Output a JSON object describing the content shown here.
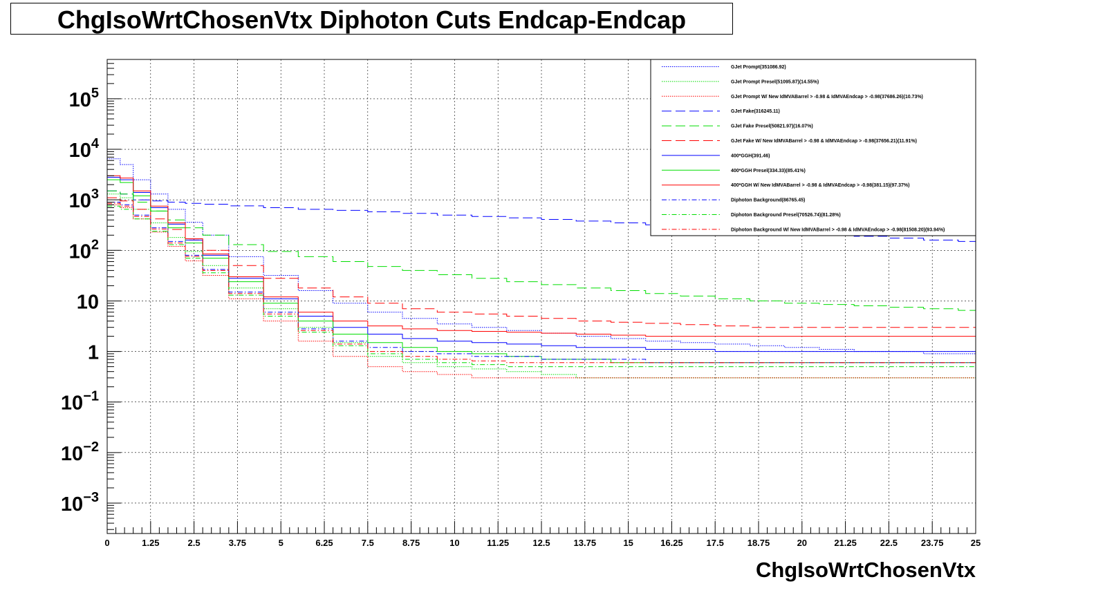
{
  "chart_data": {
    "type": "line",
    "title": "ChgIsoWrtChosenVtx Diphoton Cuts Endcap-Endcap",
    "xlabel": "ChgIsoWrtChosenVtx",
    "ylabel": "",
    "log_y": true,
    "grid": true,
    "legend_position": "top-right",
    "xlim": [
      0,
      25
    ],
    "ylim": [
      0.00025,
      600000
    ],
    "x_ticks": [
      "0",
      "1.25",
      "2.5",
      "3.75",
      "5",
      "6.25",
      "7.5",
      "8.75",
      "10",
      "11.25",
      "12.5",
      "13.75",
      "15",
      "16.25",
      "17.5",
      "18.75",
      "20",
      "21.25",
      "22.5",
      "23.75",
      "25"
    ],
    "y_ticks": [
      {
        "value": 100000,
        "base": "10",
        "exp": "5"
      },
      {
        "value": 10000,
        "base": "10",
        "exp": "4"
      },
      {
        "value": 1000,
        "base": "10",
        "exp": "3"
      },
      {
        "value": 100,
        "base": "10",
        "exp": "2"
      },
      {
        "value": 10,
        "base": "10",
        "exp": ""
      },
      {
        "value": 1,
        "base": "1",
        "exp": ""
      },
      {
        "value": 0.1,
        "base": "10",
        "exp": "−1"
      },
      {
        "value": 0.01,
        "base": "10",
        "exp": "−2"
      },
      {
        "value": 0.001,
        "base": "10",
        "exp": "−3"
      }
    ],
    "x": [
      0.25,
      0.5,
      1,
      1.5,
      2,
      2.5,
      3,
      4,
      5,
      6,
      7,
      8,
      9,
      10,
      11,
      12,
      13,
      14,
      15,
      16,
      17,
      18,
      19,
      20,
      21,
      22,
      23,
      24,
      25
    ],
    "series": [
      {
        "name": "GJet Prompt(351086.92)",
        "color": "#0000ff",
        "dash": "dotted",
        "values": [
          6500,
          5000,
          2500,
          1300,
          650,
          360,
          200,
          75,
          32,
          16,
          9,
          6,
          4.5,
          3.5,
          3,
          2.6,
          2.3,
          2,
          1.8,
          1.6,
          1.5,
          1.4,
          1.3,
          1.2,
          1.1,
          1,
          1,
          0.9,
          0.9
        ]
      },
      {
        "name": "GJet Prompt Presel(51095.87)(14.55%)",
        "color": "#00dd00",
        "dash": "dotted",
        "values": [
          1300,
          1100,
          650,
          350,
          180,
          95,
          50,
          18,
          7,
          3,
          1.5,
          0.8,
          0.6,
          0.5,
          0.45,
          0.4,
          0.35,
          0.3,
          0.3,
          0.3,
          0.3,
          0.3,
          0.3,
          0.3,
          0.3,
          0.3,
          0.3,
          0.3,
          0.3
        ]
      },
      {
        "name": "GJet Prompt W/ New IdMVABarrel > -0.98 & IdMVAEndcap > -0.98(37686.26)(10.73%)",
        "color": "#ff0000",
        "dash": "dotted",
        "values": [
          800,
          700,
          420,
          230,
          120,
          62,
          32,
          11,
          4,
          1.6,
          0.8,
          0.5,
          0.4,
          0.35,
          0.3,
          0.3,
          0.3,
          0.3,
          0.3,
          0.3,
          0.3,
          0.3,
          0.3,
          0.3,
          0.3,
          0.3,
          0.3,
          0.3,
          0.3
        ]
      },
      {
        "name": "GJet Fake(316245.11)",
        "color": "#0000ff",
        "dash": "longdash",
        "values": [
          1500,
          1300,
          1000,
          950,
          900,
          850,
          820,
          760,
          700,
          650,
          620,
          580,
          540,
          500,
          470,
          440,
          410,
          380,
          350,
          320,
          290,
          270,
          250,
          230,
          210,
          190,
          175,
          160,
          150
        ]
      },
      {
        "name": "GJet Fake Presel(50821.97)(16.07%)",
        "color": "#00dd00",
        "dash": "longdash",
        "values": [
          1500,
          1300,
          900,
          600,
          400,
          280,
          200,
          130,
          95,
          75,
          60,
          48,
          40,
          33,
          28,
          24,
          21,
          18,
          16,
          14,
          12.5,
          11,
          10,
          9,
          8.5,
          8,
          7.5,
          7,
          6.5
        ]
      },
      {
        "name": "GJet Fake W/ New IdMVABarrel > -0.98 & IdMVAEndcap > -0.98(37656.21)(11.91%)",
        "color": "#ff0000",
        "dash": "longdash",
        "values": [
          1100,
          950,
          650,
          420,
          260,
          160,
          100,
          50,
          28,
          18,
          12,
          9,
          7,
          6,
          5.5,
          5,
          4.5,
          4,
          3.8,
          3.6,
          3.4,
          3.2,
          3,
          3,
          3,
          3,
          3,
          3,
          3
        ]
      },
      {
        "name": "400*GGH(391.46)",
        "color": "#0000ff",
        "dash": "solid",
        "values": [
          2800,
          2500,
          1400,
          700,
          330,
          160,
          80,
          28,
          11,
          5,
          3,
          2.2,
          1.8,
          1.6,
          1.5,
          1.4,
          1.3,
          1.2,
          1.2,
          1.1,
          1.1,
          1,
          1,
          1,
          1,
          1,
          1,
          1,
          1
        ]
      },
      {
        "name": "400*GGH Presel(334.33)(85.41%)",
        "color": "#00dd00",
        "dash": "solid",
        "values": [
          2500,
          2200,
          1200,
          600,
          280,
          140,
          70,
          24,
          9,
          4,
          2.2,
          1.5,
          1.2,
          1,
          0.9,
          0.8,
          0.7,
          0.7,
          0.6,
          0.6,
          0.6,
          0.6,
          0.6,
          0.6,
          0.6,
          0.6,
          0.6,
          0.6,
          0.6
        ]
      },
      {
        "name": "400*GGH W/ New IdMVABarrel > -0.98 & IdMVAEndcap > -0.98(381.15)(97.37%)",
        "color": "#ff0000",
        "dash": "solid",
        "values": [
          3000,
          2700,
          1500,
          750,
          350,
          170,
          85,
          30,
          12,
          6,
          4,
          3.2,
          2.8,
          2.6,
          2.5,
          2.4,
          2.3,
          2.2,
          2.1,
          2,
          2,
          2,
          2,
          2,
          2,
          2,
          2,
          2,
          2
        ]
      },
      {
        "name": "Diphoton Background(86765.45)",
        "color": "#0000ff",
        "dash": "dashdot",
        "values": [
          900,
          800,
          500,
          280,
          150,
          80,
          42,
          15,
          6,
          2.8,
          1.6,
          1.2,
          1,
          0.9,
          0.8,
          0.8,
          0.7,
          0.7,
          0.7,
          0.6,
          0.6,
          0.6,
          0.6,
          0.6,
          0.6,
          0.6,
          0.6,
          0.6,
          0.6
        ]
      },
      {
        "name": "Diphoton Background Presel(70526.74)(81.28%)",
        "color": "#00dd00",
        "dash": "dashdot",
        "values": [
          750,
          650,
          420,
          240,
          130,
          70,
          36,
          13,
          5,
          2.4,
          1.3,
          0.9,
          0.7,
          0.6,
          0.55,
          0.5,
          0.5,
          0.5,
          0.5,
          0.5,
          0.5,
          0.5,
          0.5,
          0.5,
          0.5,
          0.5,
          0.5,
          0.5,
          0.5
        ]
      },
      {
        "name": "Diphoton Background W/ New IdMVABarrel > -0.98 & IdMVAEndcap > -0.98(81508.20)(93.94%)",
        "color": "#ff0000",
        "dash": "dashdot",
        "values": [
          850,
          750,
          470,
          265,
          140,
          76,
          40,
          14,
          5.5,
          2.6,
          1.4,
          1,
          0.8,
          0.7,
          0.65,
          0.6,
          0.6,
          0.6,
          0.6,
          0.6,
          0.6,
          0.6,
          0.6,
          0.6,
          0.6,
          0.6,
          0.6,
          0.6,
          0.6
        ]
      }
    ]
  }
}
